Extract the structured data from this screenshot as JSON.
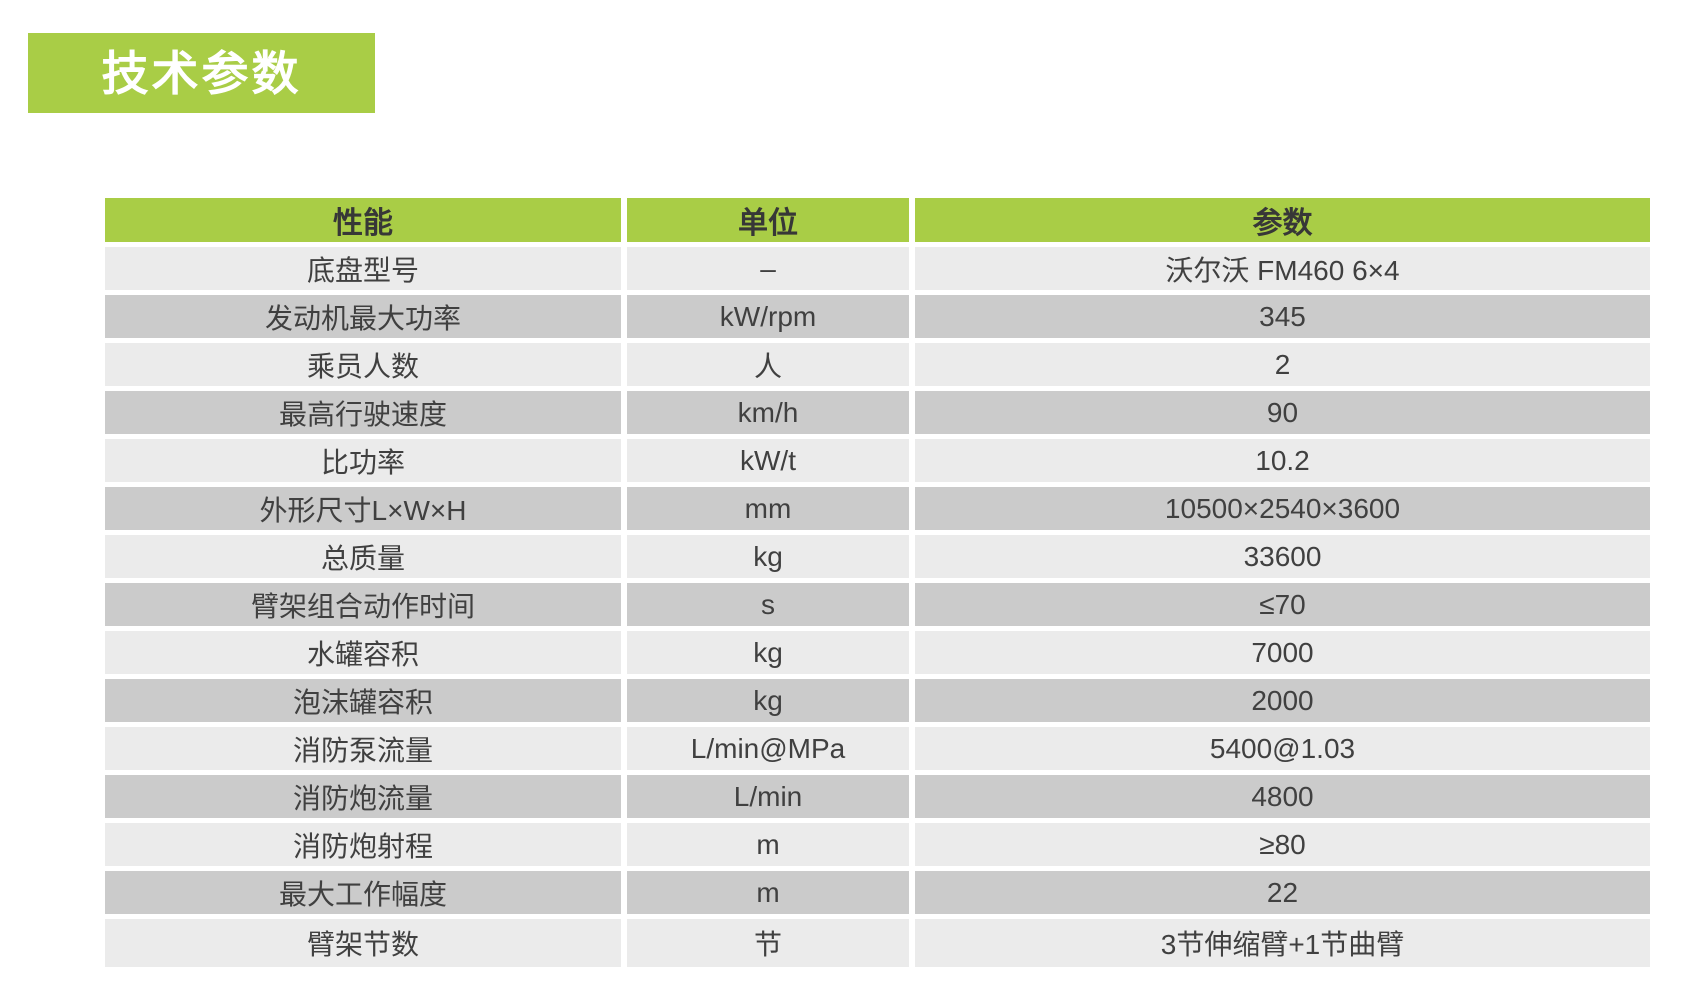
{
  "title": {
    "label": "技术参数"
  },
  "colors": {
    "accent_green": "#a9cd46",
    "row_light": "#ebebeb",
    "row_dark": "#cbcbcb",
    "cell_text": "#404040",
    "header_text": "#373737",
    "title_text": "#ffffff",
    "divider": "#ffffff"
  },
  "table": {
    "columns": [
      {
        "key": "name",
        "label": "性能"
      },
      {
        "key": "unit",
        "label": "单位"
      },
      {
        "key": "value",
        "label": "参数"
      }
    ],
    "rows": [
      {
        "name": "底盘型号",
        "unit": "–",
        "value": "沃尔沃 FM460 6×4"
      },
      {
        "name": "发动机最大功率",
        "unit": "kW/rpm",
        "value": "345"
      },
      {
        "name": "乘员人数",
        "unit": "人",
        "value": "2"
      },
      {
        "name": "最高行驶速度",
        "unit": "km/h",
        "value": "90"
      },
      {
        "name": "比功率",
        "unit": "kW/t",
        "value": "10.2"
      },
      {
        "name": "外形尺寸L×W×H",
        "unit": "mm",
        "value": "10500×2540×3600"
      },
      {
        "name": "总质量",
        "unit": "kg",
        "value": "33600"
      },
      {
        "name": "臂架组合动作时间",
        "unit": "s",
        "value": "≤70"
      },
      {
        "name": "水罐容积",
        "unit": "kg",
        "value": "7000"
      },
      {
        "name": "泡沫罐容积",
        "unit": "kg",
        "value": "2000"
      },
      {
        "name": "消防泵流量",
        "unit": "L/min@MPa",
        "value": "5400@1.03"
      },
      {
        "name": "消防炮流量",
        "unit": "L/min",
        "value": "4800"
      },
      {
        "name": "消防炮射程",
        "unit": "m",
        "value": "≥80"
      },
      {
        "name": "最大工作幅度",
        "unit": "m",
        "value": "22"
      },
      {
        "name": "臂架节数",
        "unit": "节",
        "value": "3节伸缩臂+1节曲臂"
      }
    ]
  }
}
